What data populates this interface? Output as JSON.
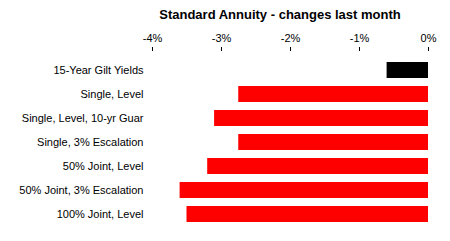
{
  "chart_data": {
    "type": "bar",
    "orientation": "horizontal",
    "title": "Standard Annuity - changes last month",
    "categories": [
      "15-Year Gilt Yields",
      "Single, Level",
      "Single, Level, 10-yr Guar",
      "Single, 3% Escalation",
      "50% Joint, Level",
      "50% Joint, 3% Escalation",
      "100% Joint, Level"
    ],
    "values": [
      -0.6,
      -2.75,
      -3.1,
      -2.75,
      -3.2,
      -3.6,
      -3.5
    ],
    "colors": [
      "#000000",
      "#ff0000",
      "#ff0000",
      "#ff0000",
      "#ff0000",
      "#ff0000",
      "#ff0000"
    ],
    "xlim": [
      -4,
      0
    ],
    "xticks": [
      {
        "value": -4,
        "label": "-4%"
      },
      {
        "value": -3,
        "label": "-3%"
      },
      {
        "value": -2,
        "label": "-2%"
      },
      {
        "value": -1,
        "label": "-1%"
      },
      {
        "value": 0,
        "label": "0%"
      }
    ],
    "grid": false
  }
}
